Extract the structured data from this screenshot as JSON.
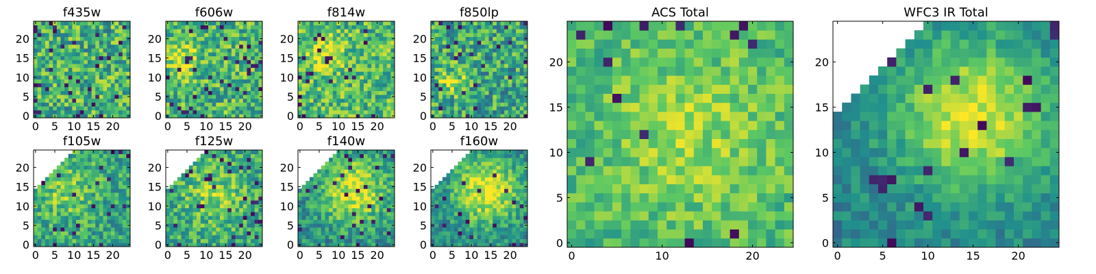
{
  "figure": {
    "colormap": [
      "#440154",
      "#3b528b",
      "#21918c",
      "#5ec962",
      "#fde725"
    ]
  },
  "chart_data": [
    {
      "type": "heatmap",
      "title": "f435w",
      "grid_size": 25,
      "xlim": [
        0,
        24
      ],
      "ylim": [
        0,
        24
      ],
      "xticks": [
        0,
        5,
        10,
        15,
        20
      ],
      "yticks": [
        0,
        5,
        10,
        15,
        20
      ],
      "field": {
        "style": "noise",
        "level": 0.64,
        "noise": 0.28,
        "blob": null,
        "mask": false,
        "dark_rate": 0.05,
        "seed": 11
      }
    },
    {
      "type": "heatmap",
      "title": "f606w",
      "grid_size": 25,
      "xlim": [
        0,
        24
      ],
      "ylim": [
        0,
        24
      ],
      "xticks": [
        0,
        5,
        10,
        15,
        20
      ],
      "yticks": [
        0,
        5,
        10,
        15,
        20
      ],
      "field": {
        "style": "noise",
        "level": 0.66,
        "noise": 0.26,
        "blob": [
          4,
          15,
          3,
          0.3
        ],
        "mask": false,
        "dark_rate": 0.05,
        "seed": 23
      }
    },
    {
      "type": "heatmap",
      "title": "f814w",
      "grid_size": 25,
      "xlim": [
        0,
        24
      ],
      "ylim": [
        0,
        24
      ],
      "xticks": [
        0,
        5,
        10,
        15,
        20
      ],
      "yticks": [
        0,
        5,
        10,
        15,
        20
      ],
      "field": {
        "style": "noise",
        "level": 0.68,
        "noise": 0.25,
        "blob": [
          6,
          16,
          3.5,
          0.3
        ],
        "mask": false,
        "dark_rate": 0.04,
        "seed": 37
      }
    },
    {
      "type": "heatmap",
      "title": "f850lp",
      "grid_size": 25,
      "xlim": [
        0,
        24
      ],
      "ylim": [
        0,
        24
      ],
      "xticks": [
        0,
        5,
        10,
        15,
        20
      ],
      "yticks": [
        0,
        5,
        10,
        15,
        20
      ],
      "field": {
        "style": "noise",
        "level": 0.6,
        "noise": 0.27,
        "blob": [
          5,
          9,
          2.2,
          0.35
        ],
        "mask": false,
        "dark_rate": 0.05,
        "seed": 41
      }
    },
    {
      "type": "heatmap",
      "title": "f105w",
      "grid_size": 25,
      "xlim": [
        0,
        24
      ],
      "ylim": [
        0,
        24
      ],
      "xticks": [
        0,
        5,
        10,
        15,
        20
      ],
      "yticks": [
        0,
        5,
        10,
        15,
        20
      ],
      "field": {
        "style": "noise",
        "level": 0.6,
        "noise": 0.22,
        "blob": [
          8,
          14,
          5,
          0.2
        ],
        "mask": true,
        "dark_rate": 0.04,
        "seed": 53
      }
    },
    {
      "type": "heatmap",
      "title": "f125w",
      "grid_size": 25,
      "xlim": [
        0,
        24
      ],
      "ylim": [
        0,
        24
      ],
      "xticks": [
        0,
        5,
        10,
        15,
        20
      ],
      "yticks": [
        0,
        5,
        10,
        15,
        20
      ],
      "field": {
        "style": "noise",
        "level": 0.6,
        "noise": 0.22,
        "blob": [
          12,
          13,
          6,
          0.2
        ],
        "mask": true,
        "dark_rate": 0.05,
        "seed": 67
      }
    },
    {
      "type": "heatmap",
      "title": "f140w",
      "grid_size": 25,
      "xlim": [
        0,
        24
      ],
      "ylim": [
        0,
        24
      ],
      "xticks": [
        0,
        5,
        10,
        15,
        20
      ],
      "yticks": [
        0,
        5,
        10,
        15,
        20
      ],
      "field": {
        "style": "noise",
        "level": 0.5,
        "noise": 0.2,
        "blob": [
          14,
          14,
          6,
          0.45
        ],
        "mask": true,
        "dark_rate": 0.04,
        "seed": 71
      }
    },
    {
      "type": "heatmap",
      "title": "f160w",
      "grid_size": 25,
      "xlim": [
        0,
        24
      ],
      "ylim": [
        0,
        24
      ],
      "xticks": [
        0,
        5,
        10,
        15,
        20
      ],
      "yticks": [
        0,
        5,
        10,
        15,
        20
      ],
      "field": {
        "style": "noise",
        "level": 0.48,
        "noise": 0.18,
        "blob": [
          14,
          14,
          6,
          0.5
        ],
        "mask": true,
        "dark_rate": 0.03,
        "seed": 83
      }
    },
    {
      "type": "heatmap",
      "title": "ACS Total",
      "grid_size": 25,
      "xlim": [
        0,
        24
      ],
      "ylim": [
        0,
        24
      ],
      "xticks": [
        0,
        10,
        20
      ],
      "yticks": [
        0,
        5,
        10,
        15,
        20
      ],
      "field": {
        "style": "noise",
        "level": 0.66,
        "noise": 0.16,
        "blob": [
          13,
          12,
          7,
          0.18
        ],
        "mask": false,
        "dark_rate": 0.02,
        "seed": 97
      }
    },
    {
      "type": "heatmap",
      "title": "WFC3 IR Total",
      "grid_size": 25,
      "xlim": [
        0,
        24
      ],
      "ylim": [
        0,
        24
      ],
      "xticks": [
        0,
        5,
        10,
        15,
        20
      ],
      "yticks": [
        0,
        5,
        10,
        15,
        20
      ],
      "field": {
        "style": "noise",
        "level": 0.45,
        "noise": 0.12,
        "blob": [
          15,
          14,
          6,
          0.5
        ],
        "mask": true,
        "dark_rate": 0.03,
        "seed": 101
      }
    }
  ]
}
